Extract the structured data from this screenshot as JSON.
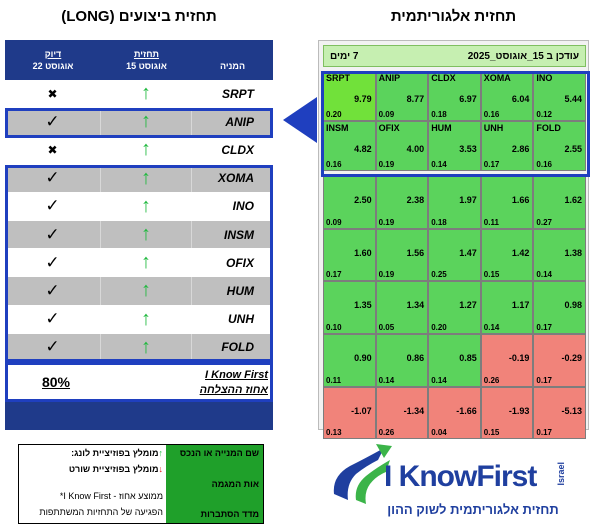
{
  "titles": {
    "left": "תחזית ביצועים (LONG)",
    "right": "תחזית אלגוריתמית"
  },
  "left_table": {
    "headers": {
      "company": "המניה",
      "forecast_label": "תחזית",
      "forecast_date": "15 אוגוסט",
      "accuracy_label": "דיוק",
      "accuracy_date": "22 אוגוסט"
    },
    "rows": [
      {
        "ticker": "SRPT",
        "arrow": "↑",
        "mark": "✖"
      },
      {
        "ticker": "ANIP",
        "arrow": "↑",
        "mark": "✓"
      },
      {
        "ticker": "CLDX",
        "arrow": "↑",
        "mark": "✖"
      },
      {
        "ticker": "XOMA",
        "arrow": "↑",
        "mark": "✓"
      },
      {
        "ticker": "INO",
        "arrow": "↑",
        "mark": "✓"
      },
      {
        "ticker": "INSM",
        "arrow": "↑",
        "mark": "✓"
      },
      {
        "ticker": "OFIX",
        "arrow": "↑",
        "mark": "✓"
      },
      {
        "ticker": "HUM",
        "arrow": "↑",
        "mark": "✓"
      },
      {
        "ticker": "UNH",
        "arrow": "↑",
        "mark": "✓"
      },
      {
        "ticker": "FOLD",
        "arrow": "↑",
        "mark": "✓"
      }
    ],
    "summary": {
      "percent": "80%",
      "brand": "I Know First",
      "label": "אחוז ההצלחה"
    }
  },
  "heatmap": {
    "header_left": "7 ימים",
    "header_right": "עודכן ב 15_אוגוסט_2025",
    "rows": [
      [
        {
          "ticker": "SRPT",
          "signal": "9.79",
          "predictability": "0.20",
          "color": "lime"
        },
        {
          "ticker": "ANIP",
          "signal": "8.77",
          "predictability": "0.09",
          "color": "green"
        },
        {
          "ticker": "CLDX",
          "signal": "6.97",
          "predictability": "0.18",
          "color": "green"
        },
        {
          "ticker": "XOMA",
          "signal": "6.04",
          "predictability": "0.16",
          "color": "green"
        },
        {
          "ticker": "INO",
          "signal": "5.44",
          "predictability": "0.12",
          "color": "green"
        }
      ],
      [
        {
          "ticker": "INSM",
          "signal": "4.82",
          "predictability": "0.16",
          "color": "green"
        },
        {
          "ticker": "OFIX",
          "signal": "4.00",
          "predictability": "0.19",
          "color": "green"
        },
        {
          "ticker": "HUM",
          "signal": "3.53",
          "predictability": "0.14",
          "color": "green"
        },
        {
          "ticker": "UNH",
          "signal": "2.86",
          "predictability": "0.17",
          "color": "green"
        },
        {
          "ticker": "FOLD",
          "signal": "2.55",
          "predictability": "0.16",
          "color": "green"
        }
      ],
      [
        {
          "ticker": "",
          "signal": "2.50",
          "predictability": "0.09",
          "color": "green"
        },
        {
          "ticker": "",
          "signal": "2.38",
          "predictability": "0.19",
          "color": "green"
        },
        {
          "ticker": "",
          "signal": "1.97",
          "predictability": "0.18",
          "color": "green"
        },
        {
          "ticker": "",
          "signal": "1.66",
          "predictability": "0.11",
          "color": "green"
        },
        {
          "ticker": "",
          "signal": "1.62",
          "predictability": "0.27",
          "color": "green"
        }
      ],
      [
        {
          "ticker": "",
          "signal": "1.60",
          "predictability": "0.17",
          "color": "green"
        },
        {
          "ticker": "",
          "signal": "1.56",
          "predictability": "0.19",
          "color": "green"
        },
        {
          "ticker": "",
          "signal": "1.47",
          "predictability": "0.25",
          "color": "green"
        },
        {
          "ticker": "",
          "signal": "1.42",
          "predictability": "0.15",
          "color": "green"
        },
        {
          "ticker": "",
          "signal": "1.38",
          "predictability": "0.14",
          "color": "green"
        }
      ],
      [
        {
          "ticker": "",
          "signal": "1.35",
          "predictability": "0.10",
          "color": "green"
        },
        {
          "ticker": "",
          "signal": "1.34",
          "predictability": "0.05",
          "color": "green"
        },
        {
          "ticker": "",
          "signal": "1.27",
          "predictability": "0.20",
          "color": "green"
        },
        {
          "ticker": "",
          "signal": "1.17",
          "predictability": "0.14",
          "color": "green"
        },
        {
          "ticker": "",
          "signal": "0.98",
          "predictability": "0.17",
          "color": "green"
        }
      ],
      [
        {
          "ticker": "",
          "signal": "0.90",
          "predictability": "0.11",
          "color": "green"
        },
        {
          "ticker": "",
          "signal": "0.86",
          "predictability": "0.14",
          "color": "green"
        },
        {
          "ticker": "",
          "signal": "0.85",
          "predictability": "0.14",
          "color": "green"
        },
        {
          "ticker": "",
          "signal": "-0.19",
          "predictability": "0.26",
          "color": "red"
        },
        {
          "ticker": "",
          "signal": "-0.29",
          "predictability": "0.17",
          "color": "red"
        }
      ],
      [
        {
          "ticker": "",
          "signal": "-1.07",
          "predictability": "0.13",
          "color": "red"
        },
        {
          "ticker": "",
          "signal": "-1.34",
          "predictability": "0.26",
          "color": "red"
        },
        {
          "ticker": "",
          "signal": "-1.66",
          "predictability": "0.04",
          "color": "red"
        },
        {
          "ticker": "",
          "signal": "-1.93",
          "predictability": "0.15",
          "color": "red"
        },
        {
          "ticker": "",
          "signal": "-5.13",
          "predictability": "0.17",
          "color": "red"
        }
      ]
    ]
  },
  "legend": {
    "green_1": "שם המנייה או הנכס",
    "green_2": "אות המגמה",
    "green_3": "מדד הסתברות",
    "long_label": "מומלץ בפוזיציית לונג:",
    "long_arrow": "↑",
    "short_label": "מומלץ בפוזיציית שורט",
    "short_arrow": "↓",
    "brand_line": "*I Know First - ממוצע אחוז",
    "brand_line2": "הפגיעה של התחזיות המשתתפות"
  },
  "logo": {
    "name": "I KnowFirst",
    "country": "Israel",
    "tagline": "תחזית אלגוריתמית לשוק ההון"
  },
  "colors": {
    "navy": "#1f3a8a",
    "outline_blue": "#1f3fbf",
    "green_cell": "#5bd35c",
    "lime_cell": "#71e13a",
    "red_cell": "#f1837a",
    "legend_green": "#1fa02a"
  }
}
